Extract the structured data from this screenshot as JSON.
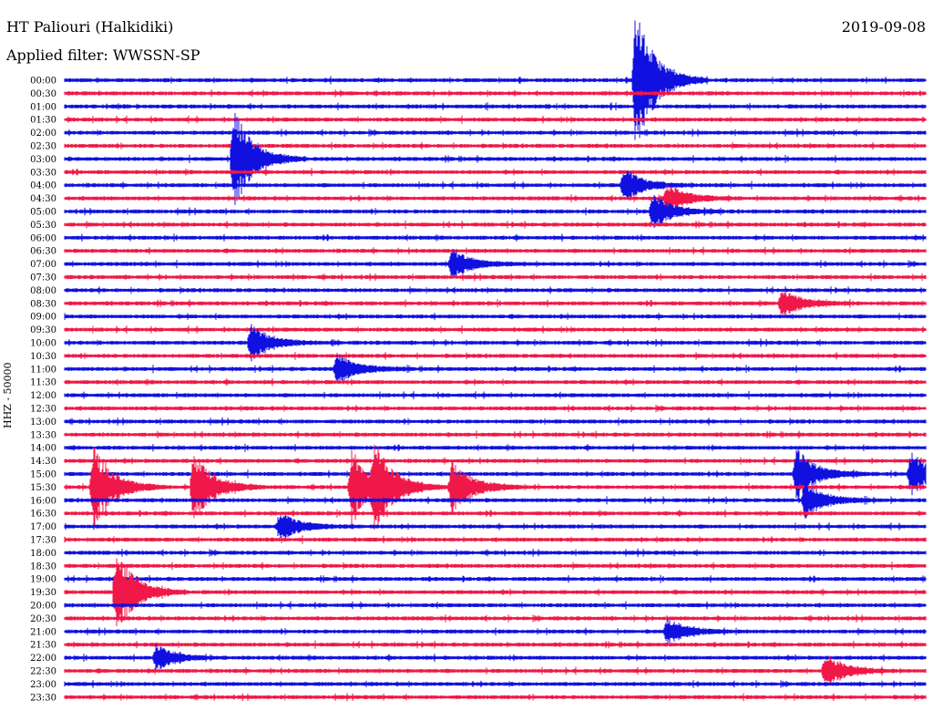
{
  "header": {
    "station": "HT Paliouri (Halkidiki)",
    "date": "2019-09-08",
    "filter": "Applied filter: WWSSN-SP"
  },
  "chart_data": {
    "type": "seismogram-helicorder",
    "ylabel": "HHZ - 50000",
    "title": "HT Paliouri (Halkidiki)",
    "row_labels": [
      "00:00",
      "00:30",
      "01:00",
      "01:30",
      "02:00",
      "02:30",
      "03:00",
      "03:30",
      "04:00",
      "04:30",
      "05:00",
      "05:30",
      "06:00",
      "06:30",
      "07:00",
      "07:30",
      "08:00",
      "08:30",
      "09:00",
      "09:30",
      "10:00",
      "10:30",
      "11:00",
      "11:30",
      "12:00",
      "12:30",
      "13:00",
      "13:30",
      "14:00",
      "14:30",
      "15:00",
      "15:30",
      "16:00",
      "16:30",
      "17:00",
      "17:30",
      "18:00",
      "18:30",
      "19:00",
      "19:30",
      "20:00",
      "20:30",
      "21:00",
      "21:30",
      "22:00",
      "22:30",
      "23:00",
      "23:30"
    ],
    "row_minutes": 30,
    "colors": {
      "even_rows": "#1010e0",
      "odd_rows": "#f01848"
    },
    "events": [
      {
        "row": "00:00",
        "minute": 19.9,
        "amplitude": 5.0
      },
      {
        "row": "03:00",
        "minute": 5.9,
        "amplitude": 3.5
      },
      {
        "row": "04:00",
        "minute": 19.5,
        "amplitude": 1.2
      },
      {
        "row": "04:30",
        "minute": 21.0,
        "amplitude": 1.0
      },
      {
        "row": "05:00",
        "minute": 20.5,
        "amplitude": 1.2
      },
      {
        "row": "07:00",
        "minute": 13.5,
        "amplitude": 1.0
      },
      {
        "row": "08:30",
        "minute": 25.0,
        "amplitude": 1.0
      },
      {
        "row": "10:00",
        "minute": 6.5,
        "amplitude": 1.2
      },
      {
        "row": "11:00",
        "minute": 9.5,
        "amplitude": 1.1
      },
      {
        "row": "15:00",
        "minute": 25.5,
        "amplitude": 1.8
      },
      {
        "row": "15:00",
        "minute": 29.5,
        "amplitude": 1.5
      },
      {
        "row": "15:30",
        "minute": 1.0,
        "amplitude": 3.0
      },
      {
        "row": "15:30",
        "minute": 4.5,
        "amplitude": 2.5
      },
      {
        "row": "15:30",
        "minute": 10.0,
        "amplitude": 2.5
      },
      {
        "row": "15:30",
        "minute": 10.8,
        "amplitude": 2.8
      },
      {
        "row": "15:30",
        "minute": 13.5,
        "amplitude": 2.0
      },
      {
        "row": "16:00",
        "minute": 25.8,
        "amplitude": 1.2
      },
      {
        "row": "17:00",
        "minute": 7.5,
        "amplitude": 1.0
      },
      {
        "row": "19:30",
        "minute": 1.8,
        "amplitude": 3.0
      },
      {
        "row": "21:00",
        "minute": 21.0,
        "amplitude": 0.9
      },
      {
        "row": "22:00",
        "minute": 3.2,
        "amplitude": 0.9
      },
      {
        "row": "22:30",
        "minute": 26.5,
        "amplitude": 1.2
      }
    ]
  }
}
